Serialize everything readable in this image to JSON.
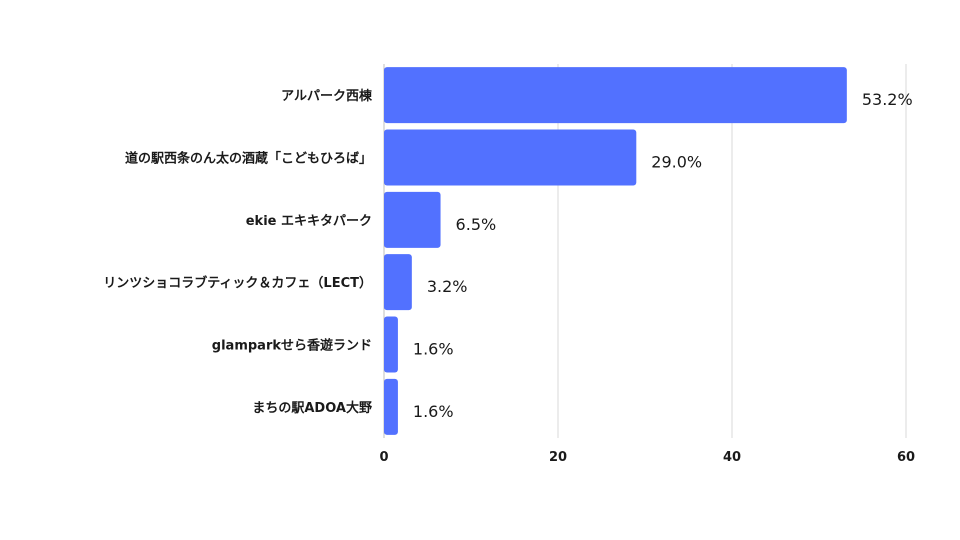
{
  "chart_data": {
    "type": "bar",
    "orientation": "horizontal",
    "categories": [
      "アルパーク西棟",
      "道の駅西条のん太の酒蔵「こどもひろば」",
      "ekie エキキタパーク",
      "リンツショコラブティック＆カフェ（LECT）",
      "glamparkせら香遊ランド",
      "まちの駅ADOA大野"
    ],
    "values": [
      53.2,
      29.0,
      6.5,
      3.2,
      1.6,
      1.6
    ],
    "value_labels": [
      "53.2%",
      "29.0%",
      "6.5%",
      "3.2%",
      "1.6%",
      "1.6%"
    ],
    "xlim": [
      0,
      60
    ],
    "xticks": [
      0,
      20,
      40,
      60
    ],
    "xtick_labels": [
      "0",
      "20",
      "40",
      "60"
    ],
    "grid": true,
    "bar_color": "#5271ff",
    "title": "",
    "xlabel": "",
    "ylabel": ""
  }
}
